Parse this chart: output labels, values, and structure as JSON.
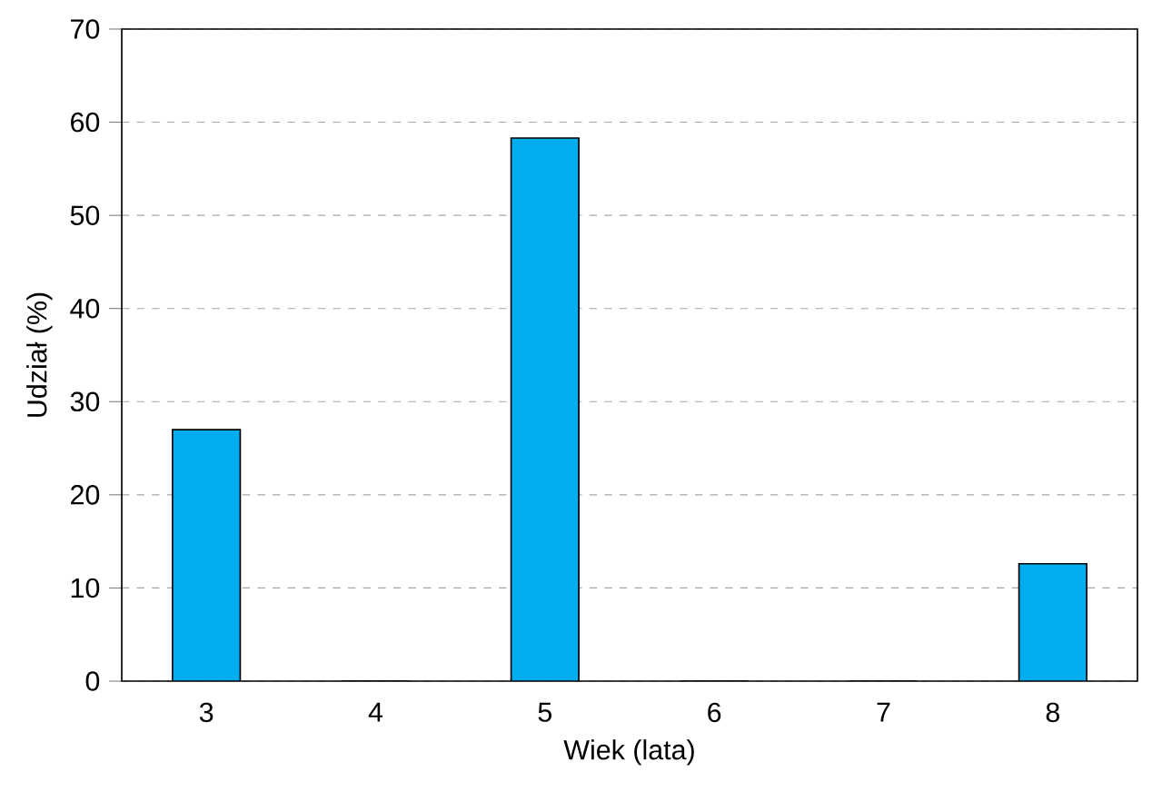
{
  "chart_data": {
    "type": "bar",
    "xlabel": "Wiek (lata)",
    "ylabel": "Udział (%)",
    "categories": [
      "3",
      "4",
      "5",
      "6",
      "7",
      "8"
    ],
    "values": [
      27,
      0,
      58.3,
      0,
      0,
      12.6
    ],
    "color": "#00aeef",
    "ylim": [
      0,
      70
    ],
    "yticks": [
      0,
      10,
      20,
      30,
      40,
      50,
      60,
      70
    ],
    "grid": "y"
  }
}
